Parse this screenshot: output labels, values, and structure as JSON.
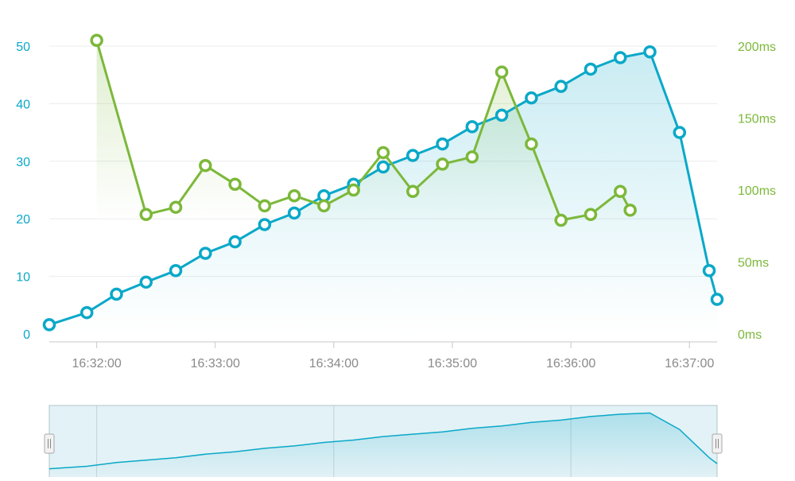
{
  "colors": {
    "left_series": "#0aa8c8",
    "right_series": "#7cb83a",
    "axis_text": "#8a8a8a",
    "grid": "#ececec",
    "navigator_fill": "#e3f2f6",
    "navigator_border": "#b0c4ca"
  },
  "chart_data": {
    "type": "line",
    "title": "",
    "xlabel": "",
    "ylabel": "",
    "x_axis": {
      "type": "time",
      "range": [
        "16:31:36",
        "16:37:14"
      ],
      "ticks": [
        "16:32:00",
        "16:33:00",
        "16:34:00",
        "16:35:00",
        "16:36:00",
        "16:37:00"
      ]
    },
    "y_axis_left": {
      "range": [
        0,
        50
      ],
      "ticks": [
        "0",
        "10",
        "20",
        "30",
        "40",
        "50"
      ]
    },
    "y_axis_right": {
      "range": [
        0,
        200
      ],
      "ticks": [
        "0ms",
        "50ms",
        "100ms",
        "150ms",
        "200ms"
      ]
    },
    "grid": true,
    "legend": "none",
    "series": [
      {
        "axis": "left",
        "style": "area-line-markers",
        "points": [
          [
            "16:31:36",
            1.6
          ],
          [
            "16:31:55",
            3.7
          ],
          [
            "16:32:10",
            6.9
          ],
          [
            "16:32:25",
            9.0
          ],
          [
            "16:32:40",
            11.0
          ],
          [
            "16:32:55",
            14.0
          ],
          [
            "16:33:10",
            16.0
          ],
          [
            "16:33:25",
            19.0
          ],
          [
            "16:33:40",
            21.0
          ],
          [
            "16:33:55",
            24.0
          ],
          [
            "16:34:10",
            26.0
          ],
          [
            "16:34:25",
            29.0
          ],
          [
            "16:34:40",
            31.0
          ],
          [
            "16:34:55",
            33.0
          ],
          [
            "16:35:10",
            36.0
          ],
          [
            "16:35:25",
            38.0
          ],
          [
            "16:35:40",
            41.0
          ],
          [
            "16:35:55",
            43.0
          ],
          [
            "16:36:10",
            46.0
          ],
          [
            "16:36:25",
            48.0
          ],
          [
            "16:36:40",
            49.0
          ],
          [
            "16:36:55",
            35.0
          ],
          [
            "16:37:10",
            11.0
          ],
          [
            "16:37:14",
            6.0
          ]
        ]
      },
      {
        "axis": "right",
        "style": "area-line-markers",
        "points": [
          [
            "16:32:00",
            204
          ],
          [
            "16:32:25",
            83
          ],
          [
            "16:32:40",
            88
          ],
          [
            "16:32:55",
            117
          ],
          [
            "16:33:10",
            104
          ],
          [
            "16:33:25",
            89
          ],
          [
            "16:33:40",
            96
          ],
          [
            "16:33:55",
            89
          ],
          [
            "16:34:10",
            100
          ],
          [
            "16:34:25",
            126
          ],
          [
            "16:34:40",
            99
          ],
          [
            "16:34:55",
            118
          ],
          [
            "16:35:10",
            123
          ],
          [
            "16:35:25",
            182
          ],
          [
            "16:35:40",
            132
          ],
          [
            "16:35:55",
            79
          ],
          [
            "16:36:10",
            83
          ],
          [
            "16:36:25",
            99
          ],
          [
            "16:36:30",
            86
          ]
        ]
      }
    ],
    "navigator": {
      "range": [
        "16:31:36",
        "16:37:14"
      ],
      "series_axis": "left",
      "handles": [
        "left",
        "right"
      ]
    }
  }
}
